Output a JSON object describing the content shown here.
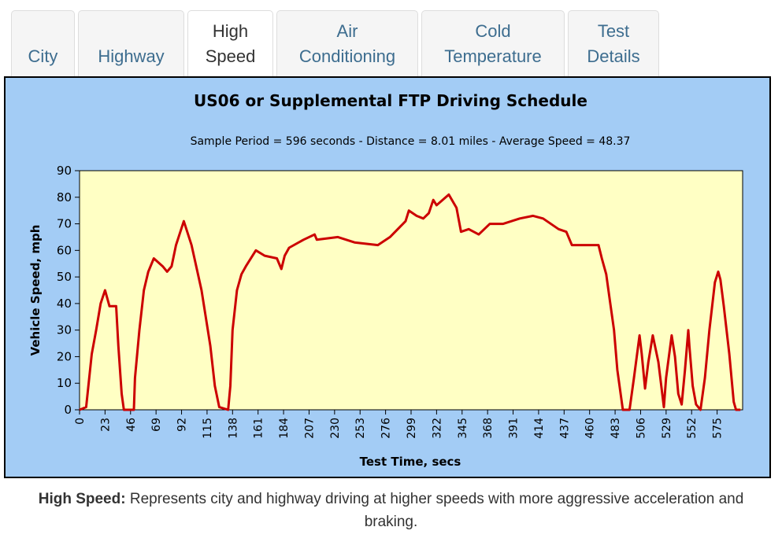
{
  "tabs": [
    "City",
    "Highway",
    "High Speed",
    "Air Conditioning",
    "Cold Temperature",
    "Test Details"
  ],
  "active_tab": 2,
  "chart_data": {
    "type": "line",
    "title": "US06 or Supplemental FTP Driving Schedule",
    "subtitle": "Sample Period = 596 seconds - Distance = 8.01 miles - Average Speed = 48.37",
    "xlabel": "Test Time, secs",
    "ylabel": "Vehicle Speed, mph",
    "x": [
      0,
      6,
      11,
      15,
      19,
      23,
      27,
      33,
      35,
      38,
      40,
      49,
      50,
      54,
      58,
      62,
      67,
      75,
      79,
      83,
      87,
      94,
      101,
      110,
      118,
      122,
      126,
      134,
      136,
      138,
      142,
      146,
      150,
      159,
      167,
      178,
      182,
      185,
      189,
      202,
      212,
      214,
      233,
      248,
      269,
      280,
      294,
      297,
      304,
      310,
      315,
      319,
      322,
      333,
      340,
      344,
      351,
      360,
      370,
      382,
      397,
      409,
      418,
      432,
      439,
      444,
      457,
      468,
      471,
      475,
      478,
      482,
      485,
      490,
      496,
      500,
      505,
      507,
      510,
      513,
      517,
      522,
      527,
      529,
      534,
      537,
      540,
      543,
      546,
      549,
      550,
      553,
      556,
      560,
      564,
      568,
      573,
      576,
      578,
      581,
      586,
      590,
      592,
      596
    ],
    "values": [
      0,
      1,
      21,
      30,
      40,
      45,
      39,
      39,
      24,
      6,
      0,
      0,
      12,
      30,
      45,
      52,
      57,
      54,
      52,
      54,
      62,
      71,
      62,
      45,
      24,
      9,
      1,
      0,
      9,
      30,
      45,
      51,
      54,
      60,
      58,
      57,
      53,
      58,
      61,
      64,
      66,
      64,
      65,
      63,
      62,
      65,
      71,
      75,
      73,
      72,
      74,
      79,
      77,
      81,
      76,
      67,
      68,
      66,
      70,
      70,
      72,
      73,
      72,
      68,
      67,
      62,
      62,
      62,
      57,
      51,
      42,
      30,
      15,
      0,
      0,
      12,
      28,
      21,
      8,
      18,
      28,
      18,
      1,
      12,
      28,
      20,
      6,
      2,
      15,
      30,
      24,
      9,
      2,
      0,
      12,
      30,
      48,
      52,
      49,
      39,
      21,
      3,
      0,
      0
    ],
    "color": "#cc0000",
    "xlim": [
      0,
      598
    ],
    "ylim": [
      0,
      90
    ],
    "xticks": [
      0,
      23,
      46,
      69,
      92,
      115,
      138,
      161,
      184,
      207,
      230,
      253,
      276,
      299,
      322,
      345,
      368,
      391,
      414,
      437,
      460,
      483,
      506,
      529,
      552,
      575
    ],
    "yticks": [
      0,
      10,
      20,
      30,
      40,
      50,
      60,
      70,
      80,
      90
    ]
  },
  "caption": {
    "label": "High Speed:",
    "text": "Represents city and highway driving at higher speeds with more aggressive acceleration and braking."
  }
}
